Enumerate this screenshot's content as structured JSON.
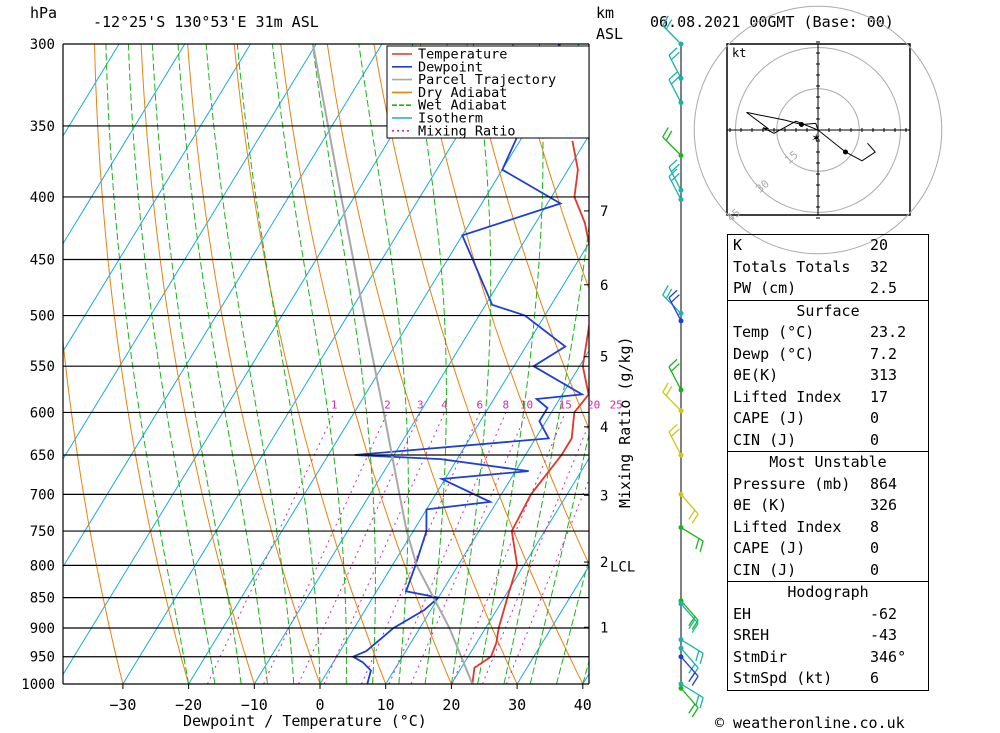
{
  "header": {
    "pressure_unit": "hPa",
    "location": "-12°25'S 130°53'E 31m ASL",
    "height_unit": "km",
    "height_unit2": "ASL",
    "datetime": "06.08.2021 00GMT (Base: 00)"
  },
  "footer": {
    "credit": "© weatheronline.co.uk"
  },
  "chart_data": {
    "type": "line",
    "chart_kind": "skew-T log-P",
    "xlabel": "Dewpoint / Temperature (°C)",
    "ylabel_right": "Mixing Ratio (g/kg)",
    "x_ticks": [
      -30,
      -20,
      -10,
      0,
      10,
      20,
      30,
      40
    ],
    "pressure_levels": [
      300,
      350,
      400,
      450,
      500,
      550,
      600,
      650,
      700,
      750,
      800,
      850,
      900,
      950,
      1000
    ],
    "height_km_ticks": [
      1,
      2,
      3,
      4,
      5,
      6,
      7
    ],
    "lcl_label": "LCL",
    "mixing_ratio_labels": [
      "1",
      "2",
      "3",
      "4",
      "6",
      "8",
      "10",
      "15",
      "20",
      "25"
    ],
    "legend": {
      "placement": "top-right",
      "entries": [
        {
          "name": "Temperature",
          "color": "#e8322a"
        },
        {
          "name": "Dewpoint",
          "color": "#1d3fd6"
        },
        {
          "name": "Parcel Trajectory",
          "color": "#a8a8a8"
        },
        {
          "name": "Dry Adiabat",
          "color": "#e8820f"
        },
        {
          "name": "Wet Adiabat",
          "color": "#19b519"
        },
        {
          "name": "Isotherm",
          "color": "#1ba8e0"
        },
        {
          "name": "Mixing Ratio",
          "color": "#d12ab0"
        }
      ]
    },
    "series": [
      {
        "name": "Temperature",
        "points": [
          [
            1000,
            23.2
          ],
          [
            970,
            22.0
          ],
          [
            950,
            23.5
          ],
          [
            925,
            23.0
          ],
          [
            900,
            22.0
          ],
          [
            850,
            20.5
          ],
          [
            800,
            19.0
          ],
          [
            750,
            15.0
          ],
          [
            700,
            14.5
          ],
          [
            650,
            15.5
          ],
          [
            630,
            15.5
          ],
          [
            600,
            13.5
          ],
          [
            580,
            14.0
          ],
          [
            550,
            10.5
          ],
          [
            500,
            7.0
          ],
          [
            450,
            2.0
          ],
          [
            420,
            -2.5
          ],
          [
            400,
            -6.5
          ],
          [
            380,
            -8.5
          ],
          [
            360,
            -12.0
          ]
        ]
      },
      {
        "name": "Dewpoint",
        "points": [
          [
            1000,
            7.2
          ],
          [
            975,
            6.5
          ],
          [
            960,
            4.5
          ],
          [
            950,
            2.5
          ],
          [
            940,
            4.0
          ],
          [
            900,
            6.0
          ],
          [
            870,
            9.0
          ],
          [
            850,
            10.0
          ],
          [
            840,
            4.5
          ],
          [
            800,
            3.5
          ],
          [
            750,
            2.0
          ],
          [
            720,
            0.0
          ],
          [
            710,
            9.0
          ],
          [
            680,
            -0.5
          ],
          [
            670,
            12.0
          ],
          [
            655,
            -2.5
          ],
          [
            650,
            -16.0
          ],
          [
            630,
            12.0
          ],
          [
            610,
            9.0
          ],
          [
            595,
            9.0
          ],
          [
            585,
            6.5
          ],
          [
            580,
            13.0
          ],
          [
            550,
            3.0
          ],
          [
            530,
            6.0
          ],
          [
            500,
            -3.0
          ],
          [
            490,
            -9.0
          ],
          [
            430,
            -20.0
          ],
          [
            405,
            -8.0
          ],
          [
            380,
            -20.0
          ],
          [
            300,
            -23.0
          ]
        ]
      },
      {
        "name": "Parcel Trajectory",
        "points": [
          [
            1000,
            23.2
          ],
          [
            900,
            14.5
          ],
          [
            800,
            3.7
          ],
          [
            750,
            -1.0
          ],
          [
            700,
            -5.5
          ],
          [
            600,
            -15.5
          ],
          [
            500,
            -27.5
          ],
          [
            400,
            -42.0
          ],
          [
            300,
            -60.5
          ]
        ]
      }
    ]
  },
  "hodograph": {
    "unit": "kt",
    "ring_labels": [
      "15",
      "30",
      "45"
    ],
    "points": [
      [
        0,
        0
      ],
      [
        -0.2,
        0.6
      ],
      [
        -1.5,
        0.5
      ],
      [
        -3.0,
        0.9
      ],
      [
        -6.5,
        1.6
      ],
      [
        -4.5,
        0.1
      ],
      [
        -5.0,
        0.2
      ],
      [
        -4.0,
        -0.3
      ],
      [
        -2.0,
        0.8
      ],
      [
        0,
        0
      ],
      [
        2.5,
        -2.0
      ],
      [
        4.0,
        -2.8
      ],
      [
        5.2,
        -2.0
      ],
      [
        4.5,
        -1.2
      ]
    ],
    "dots": [
      [
        -1.5,
        0.5
      ],
      [
        2.5,
        -2.0
      ]
    ]
  },
  "indices": {
    "general": [
      {
        "label": "K",
        "value": "20"
      },
      {
        "label": "Totals Totals",
        "value": "32"
      },
      {
        "label": "PW (cm)",
        "value": "2.5"
      }
    ],
    "surface_title": "Surface",
    "surface": [
      {
        "label": "Temp (°C)",
        "value": "23.2"
      },
      {
        "label": "Dewp (°C)",
        "value": "7.2"
      },
      {
        "label": "θE(K)",
        "value": "313"
      },
      {
        "label": "Lifted Index",
        "value": "17"
      },
      {
        "label": "CAPE (J)",
        "value": "0"
      },
      {
        "label": "CIN (J)",
        "value": "0"
      }
    ],
    "unstable_title": "Most Unstable",
    "unstable": [
      {
        "label": "Pressure (mb)",
        "value": "864"
      },
      {
        "label": "θE (K)",
        "value": "326"
      },
      {
        "label": "Lifted Index",
        "value": "8"
      },
      {
        "label": "CAPE (J)",
        "value": "0"
      },
      {
        "label": "CIN (J)",
        "value": "0"
      }
    ],
    "hodo_title": "Hodograph",
    "hodo": [
      {
        "label": "EH",
        "value": "-62"
      },
      {
        "label": "SREH",
        "value": "-43"
      },
      {
        "label": "StmDir",
        "value": "346°"
      },
      {
        "label": "StmSpd (kt)",
        "value": "6"
      }
    ]
  },
  "wind_barbs": [
    {
      "p": 300,
      "color": "#1ab3a8"
    },
    {
      "p": 320,
      "color": "#1ab3a8"
    },
    {
      "p": 335,
      "color": "#1ab3a8"
    },
    {
      "p": 370,
      "color": "#19b519"
    },
    {
      "p": 395,
      "color": "#1ab3a8"
    },
    {
      "p": 402,
      "color": "#1ab3a8"
    },
    {
      "p": 498,
      "color": "#1ab3a8"
    },
    {
      "p": 505,
      "color": "#1d3fd6"
    },
    {
      "p": 575,
      "color": "#19b519"
    },
    {
      "p": 598,
      "color": "#c8c81a"
    },
    {
      "p": 650,
      "color": "#c8c81a"
    },
    {
      "p": 700,
      "color": "#c8c81a"
    },
    {
      "p": 745,
      "color": "#19b519"
    },
    {
      "p": 855,
      "color": "#19b519"
    },
    {
      "p": 860,
      "color": "#1ab3a8"
    },
    {
      "p": 920,
      "color": "#1ab3a8"
    },
    {
      "p": 935,
      "color": "#1ab3a8"
    },
    {
      "p": 950,
      "color": "#1d3fd6"
    },
    {
      "p": 1000,
      "color": "#1ab3a8"
    },
    {
      "p": 1008,
      "color": "#19b519"
    }
  ]
}
